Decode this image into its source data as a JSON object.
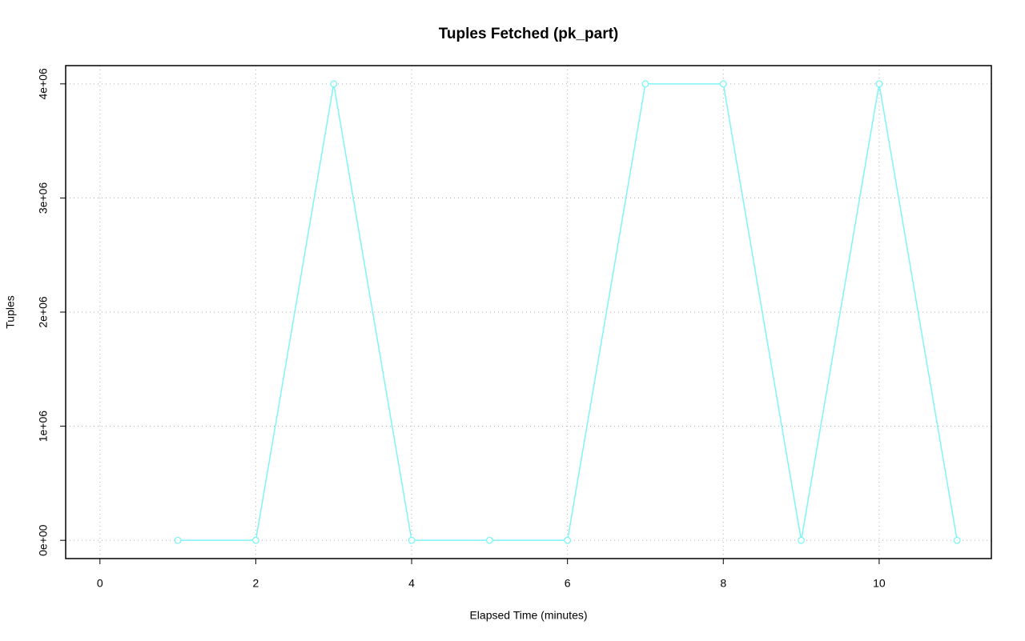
{
  "chart_data": {
    "type": "line",
    "title": "Tuples Fetched (pk_part)",
    "x_label": "Elapsed Time (minutes)",
    "y_label": "Tuples",
    "x": [
      1,
      2,
      3,
      4,
      5,
      6,
      7,
      8,
      9,
      10,
      11
    ],
    "series": [
      {
        "color": "#7ff5f5",
        "values": [
          0,
          0,
          4000000,
          0,
          0,
          0,
          4000000,
          4000000,
          0,
          4000000,
          0
        ]
      }
    ],
    "xlim": [
      -0.44,
      11.44
    ],
    "ylim": [
      -160000,
      4160000
    ],
    "xticks": [
      0,
      2,
      4,
      6,
      8,
      10
    ],
    "yticks": [
      {
        "value": 0,
        "label": "0e+00"
      },
      {
        "value": 1000000,
        "label": "1e+06"
      },
      {
        "value": 2000000,
        "label": "2e+06"
      },
      {
        "value": 3000000,
        "label": "3e+06"
      },
      {
        "value": 4000000,
        "label": "4e+06"
      }
    ],
    "grid": true
  }
}
